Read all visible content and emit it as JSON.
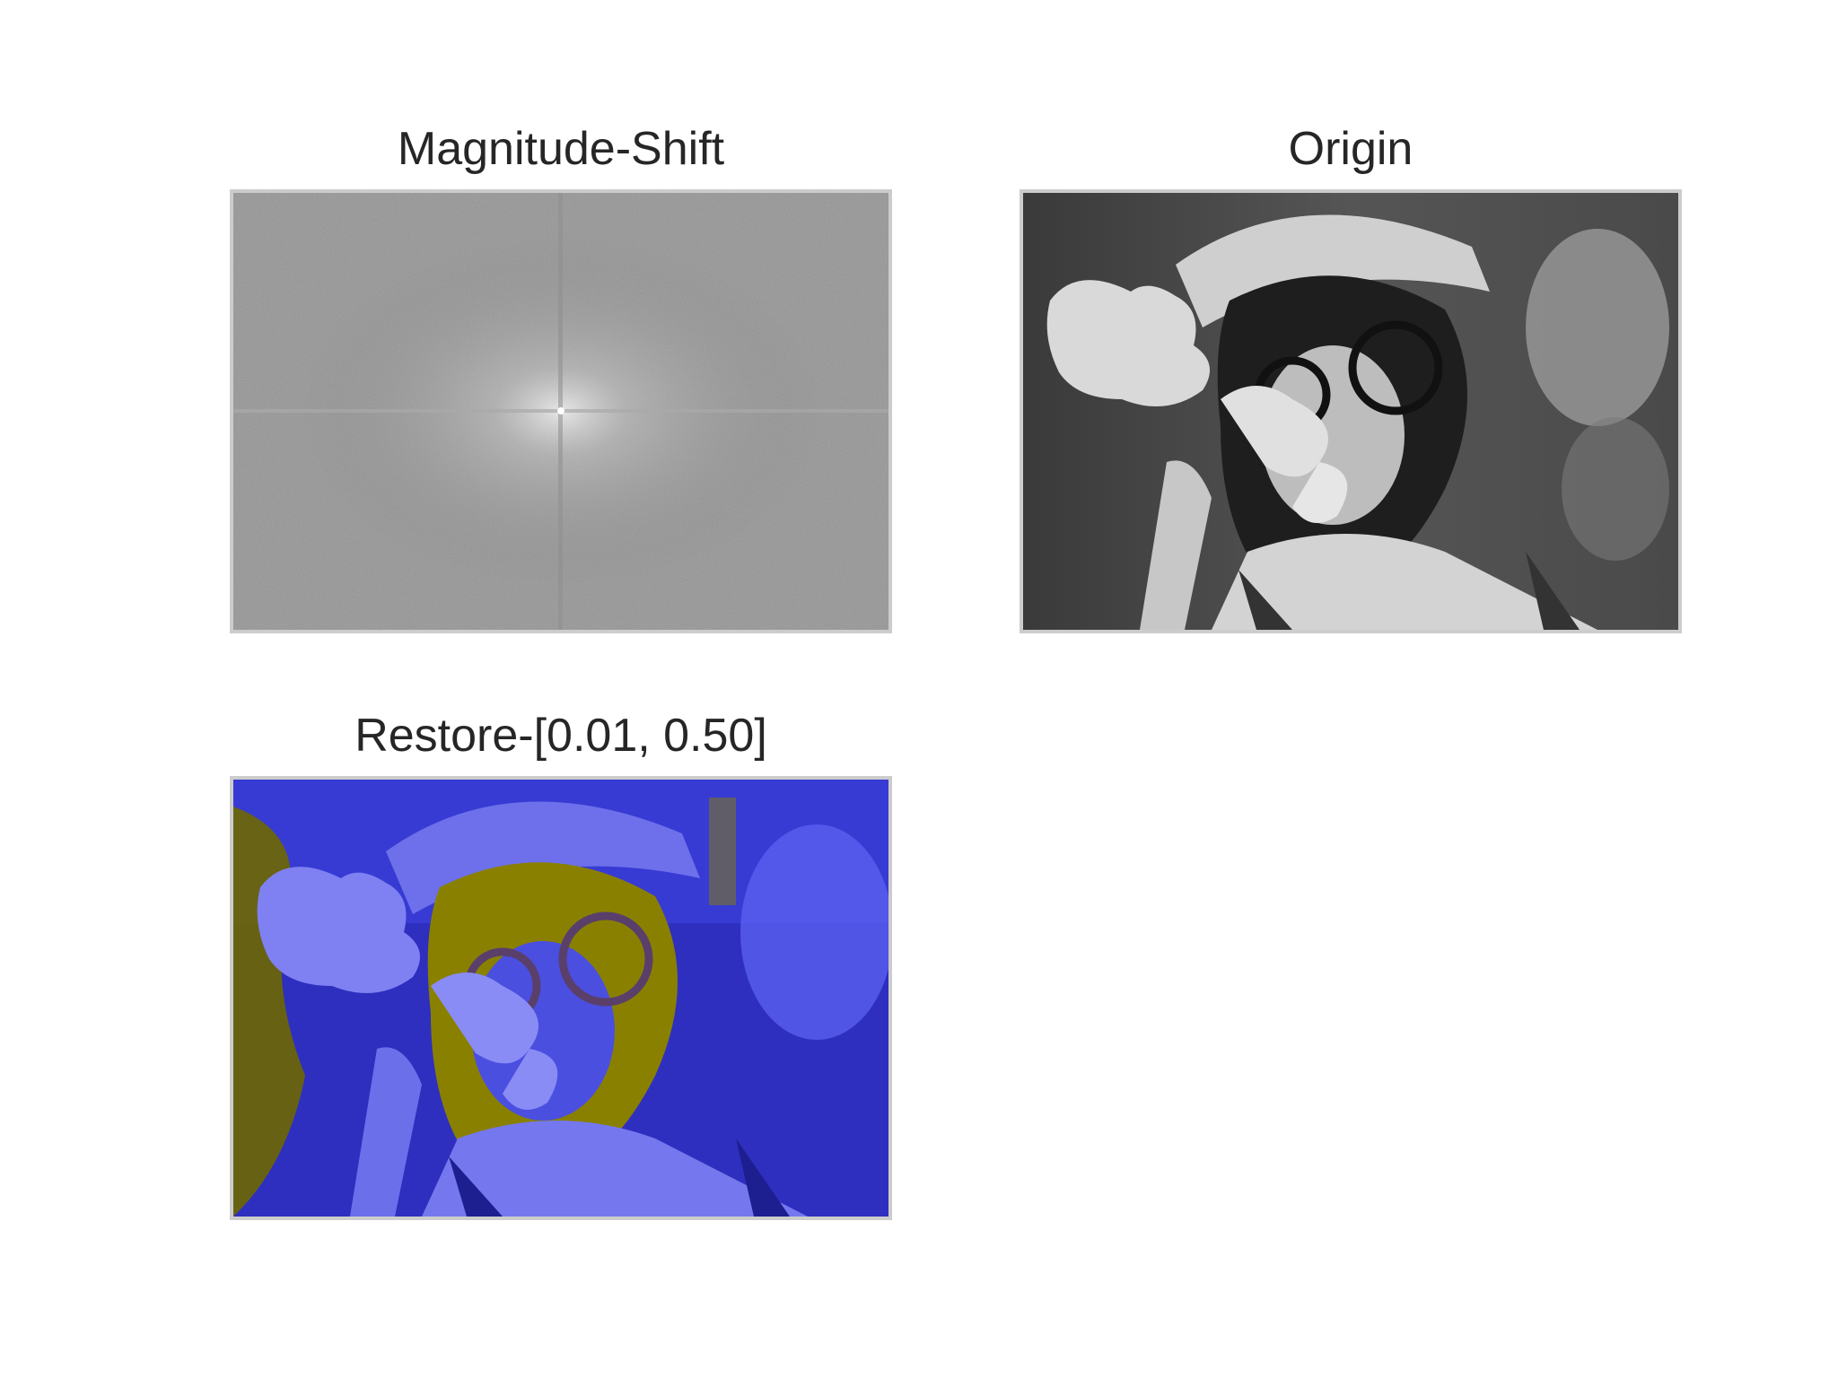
{
  "panels": [
    {
      "title": "Magnitude-Shift"
    },
    {
      "title": "Origin"
    },
    {
      "title": "Restore-[0.01, 0.50]"
    }
  ],
  "colors": {
    "frame": "#cccccc",
    "title_text": "#262626",
    "spectrum_base": "#6f6f6f",
    "restore_blue": "#3a3fd8",
    "restore_light": "#7f80f2",
    "restore_olive": "#8a8000"
  }
}
